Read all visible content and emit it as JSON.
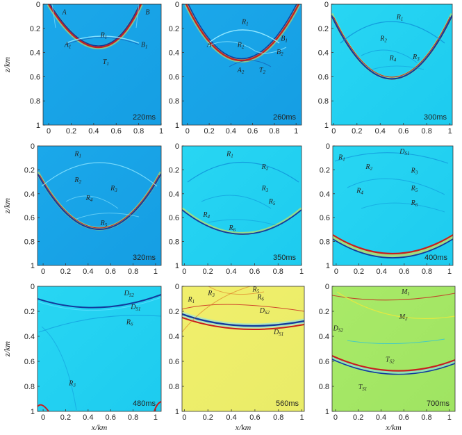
{
  "axis": {
    "x_label": "x/km",
    "z_label": "z/km",
    "x_ticks": [
      "0",
      "0.2",
      "0.4",
      "0.6",
      "0.8",
      "1"
    ],
    "z_ticks": [
      "0",
      "0.2",
      "0.4",
      "0.6",
      "0.8",
      "1"
    ]
  },
  "colors": {
    "blue_bg": "#18a6e9",
    "cyan_bg": "#22d3f2",
    "yellow_bg": "#f0ee6a",
    "green_bg": "#a6e866",
    "crest": "#c81e1e",
    "trough": "#123a9c",
    "halo": "#f2e838"
  },
  "panels": [
    {
      "id": "p220",
      "time": "220ms",
      "labels": [
        {
          "base": "A",
          "x": 0.12,
          "z": 0.06
        },
        {
          "base": "B",
          "x": 0.86,
          "z": 0.06
        },
        {
          "base": "R",
          "sub": "1",
          "x": 0.46,
          "z": 0.25
        },
        {
          "base": "A",
          "sub": "1",
          "x": 0.14,
          "z": 0.33
        },
        {
          "base": "B",
          "sub": "1",
          "x": 0.82,
          "z": 0.33
        },
        {
          "base": "T",
          "sub": "1",
          "x": 0.48,
          "z": 0.47
        }
      ]
    },
    {
      "id": "p260",
      "time": "260ms",
      "labels": [
        {
          "base": "R",
          "sub": "1",
          "x": 0.5,
          "z": 0.14
        },
        {
          "base": "A",
          "x": 0.18,
          "z": 0.33
        },
        {
          "base": "R",
          "sub": "2",
          "x": 0.46,
          "z": 0.33
        },
        {
          "base": "B",
          "sub": "1",
          "x": 0.86,
          "z": 0.28
        },
        {
          "base": "B",
          "sub": "2",
          "x": 0.82,
          "z": 0.39
        },
        {
          "base": "A",
          "sub": "2",
          "x": 0.46,
          "z": 0.54
        },
        {
          "base": "T",
          "sub": "2",
          "x": 0.66,
          "z": 0.54
        }
      ]
    },
    {
      "id": "p300",
      "time": "300ms",
      "labels": [
        {
          "base": "R",
          "sub": "1",
          "x": 0.54,
          "z": 0.1
        },
        {
          "base": "R",
          "sub": "2",
          "x": 0.4,
          "z": 0.28
        },
        {
          "base": "R",
          "sub": "4",
          "x": 0.48,
          "z": 0.44
        },
        {
          "base": "R",
          "sub": "3",
          "x": 0.68,
          "z": 0.43
        }
      ]
    },
    {
      "id": "p320",
      "time": "320ms",
      "labels": [
        {
          "base": "R",
          "sub": "1",
          "x": 0.28,
          "z": 0.06
        },
        {
          "base": "R",
          "sub": "2",
          "x": 0.28,
          "z": 0.28
        },
        {
          "base": "R",
          "sub": "3",
          "x": 0.6,
          "z": 0.35
        },
        {
          "base": "R",
          "sub": "4",
          "x": 0.38,
          "z": 0.43
        },
        {
          "base": "R",
          "sub": "5",
          "x": 0.51,
          "z": 0.64
        }
      ]
    },
    {
      "id": "p350",
      "time": "350ms",
      "labels": [
        {
          "base": "R",
          "sub": "1",
          "x": 0.36,
          "z": 0.06
        },
        {
          "base": "R",
          "sub": "2",
          "x": 0.66,
          "z": 0.17
        },
        {
          "base": "R",
          "sub": "3",
          "x": 0.66,
          "z": 0.35
        },
        {
          "base": "R",
          "sub": "5",
          "x": 0.72,
          "z": 0.46
        },
        {
          "base": "R",
          "sub": "4",
          "x": 0.16,
          "z": 0.57
        },
        {
          "base": "R",
          "sub": "6",
          "x": 0.38,
          "z": 0.68
        }
      ]
    },
    {
      "id": "p400",
      "time": "400ms",
      "labels": [
        {
          "base": "R",
          "sub": "1",
          "x": 0.02,
          "z": 0.09
        },
        {
          "base": "R",
          "sub": "2",
          "x": 0.26,
          "z": 0.17
        },
        {
          "base": "D",
          "sub": "S1",
          "x": 0.56,
          "z": 0.04
        },
        {
          "base": "R",
          "sub": "3",
          "x": 0.66,
          "z": 0.2
        },
        {
          "base": "R",
          "sub": "4",
          "x": 0.18,
          "z": 0.37
        },
        {
          "base": "R",
          "sub": "5",
          "x": 0.66,
          "z": 0.35
        },
        {
          "base": "R",
          "sub": "6",
          "x": 0.66,
          "z": 0.47
        }
      ]
    },
    {
      "id": "p480",
      "time": "480ms",
      "labels": [
        {
          "base": "D",
          "sub": "S2",
          "x": 0.72,
          "z": 0.05
        },
        {
          "base": "D",
          "sub": "S1",
          "x": 0.78,
          "z": 0.16
        },
        {
          "base": "R",
          "sub": "6",
          "x": 0.74,
          "z": 0.28
        },
        {
          "base": "R",
          "sub": "3",
          "x": 0.23,
          "z": 0.77
        }
      ]
    },
    {
      "id": "p560",
      "time": "560ms",
      "labels": [
        {
          "base": "R",
          "sub": "1",
          "x": 0.03,
          "z": 0.1
        },
        {
          "base": "R",
          "sub": "3",
          "x": 0.2,
          "z": 0.05
        },
        {
          "base": "R",
          "sub": "5",
          "x": 0.58,
          "z": 0.02
        },
        {
          "base": "R",
          "sub": "6",
          "x": 0.62,
          "z": 0.08
        },
        {
          "base": "D",
          "sub": "S2",
          "x": 0.64,
          "z": 0.19
        },
        {
          "base": "D",
          "sub": "S1",
          "x": 0.76,
          "z": 0.36
        }
      ]
    },
    {
      "id": "p700",
      "time": "700ms",
      "labels": [
        {
          "base": "M",
          "sub": "1",
          "x": 0.58,
          "z": 0.04
        },
        {
          "base": "M",
          "sub": "2",
          "x": 0.56,
          "z": 0.24
        },
        {
          "base": "D",
          "sub": "S2",
          "x": -0.02,
          "z": 0.33
        },
        {
          "base": "T",
          "sub": "S2",
          "x": 0.44,
          "z": 0.58
        },
        {
          "base": "T",
          "sub": "S1",
          "x": 0.2,
          "z": 0.8
        }
      ]
    }
  ]
}
